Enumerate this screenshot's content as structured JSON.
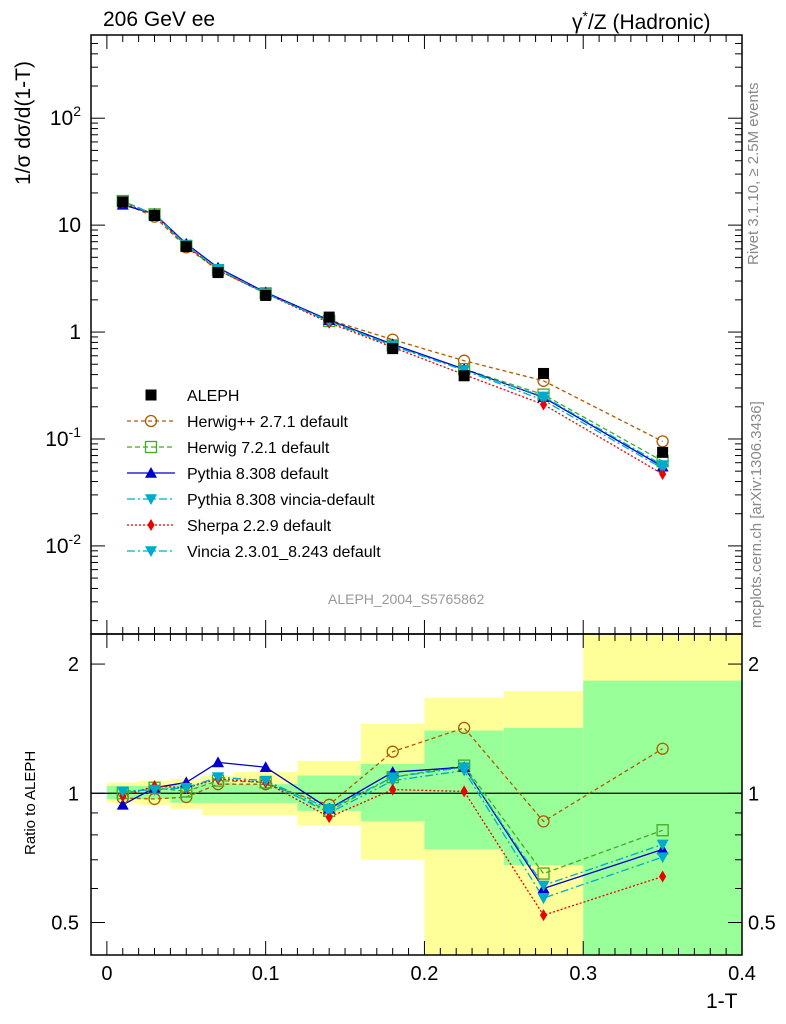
{
  "header": {
    "energy_label": "206 GeV ee",
    "process_label_prefix": "γ",
    "process_label_sup": "*",
    "process_label_suffix": "/Z (Hadronic)"
  },
  "side_labels": {
    "rivet": "Rivet 3.1.10, ≥ 2.5M events",
    "mcplots": "mcplots.cern.ch [arXiv:1306.3436]"
  },
  "analysis_label": "ALEPH_2004_S5765862",
  "main_ylabel": "1/σ  dσ/d(1-T)",
  "ratio_ylabel": "Ratio to ALEPH",
  "xlabel": "1-T",
  "chart_data": [
    {
      "type": "line",
      "title": "",
      "ylabel": "1/σ  dσ/d(1-T)",
      "yscale": "log",
      "xlim": [
        -0.01,
        0.4
      ],
      "ylim": [
        0.0015,
        600
      ],
      "yticks": [
        {
          "v": 0.01,
          "base": "10",
          "exp": "-2"
        },
        {
          "v": 0.1,
          "base": "10",
          "exp": "-1"
        },
        {
          "v": 1,
          "base": "1",
          "exp": ""
        },
        {
          "v": 10,
          "base": "10",
          "exp": ""
        },
        {
          "v": 100,
          "base": "10",
          "exp": "2"
        }
      ],
      "legend_position": "lower-left",
      "x": [
        0.01,
        0.03,
        0.05,
        0.07,
        0.1,
        0.14,
        0.18,
        0.225,
        0.275,
        0.35
      ],
      "data_series": {
        "name": "ALEPH",
        "values": [
          16.5,
          12.3,
          6.3,
          3.6,
          2.2,
          1.38,
          0.7,
          0.39,
          0.41,
          0.075
        ]
      },
      "series": [
        {
          "name": "Herwig++ 2.7.1 default",
          "color": "#b05a00",
          "dash": "4,3",
          "marker": "circle-open",
          "values": [
            16.0,
            12.0,
            6.2,
            3.8,
            2.3,
            1.3,
            0.85,
            0.54,
            0.35,
            0.095
          ]
        },
        {
          "name": "Herwig 7.2.1 default",
          "color": "#44aa22",
          "dash": "5,3",
          "marker": "square-open",
          "values": [
            16.8,
            12.6,
            6.4,
            3.8,
            2.3,
            1.27,
            0.75,
            0.45,
            0.26,
            0.062
          ]
        },
        {
          "name": "Pythia 8.308 default",
          "color": "#0000cc",
          "dash": "",
          "marker": "triangle-up",
          "values": [
            15.5,
            12.7,
            6.7,
            4.0,
            2.35,
            1.29,
            0.77,
            0.45,
            0.245,
            0.055
          ]
        },
        {
          "name": "Pythia 8.308 vincia-default",
          "color": "#00aacc",
          "dash": "8,3,2,3",
          "marker": "triangle-down",
          "values": [
            16.7,
            12.6,
            6.5,
            3.9,
            2.3,
            1.25,
            0.74,
            0.44,
            0.23,
            0.053
          ]
        },
        {
          "name": "Sherpa 2.2.9 default",
          "color": "#ee0000",
          "dash": "2,2",
          "marker": "diamond",
          "values": [
            16.2,
            12.5,
            6.4,
            3.8,
            2.3,
            1.22,
            0.72,
            0.4,
            0.21,
            0.047
          ]
        },
        {
          "name": "Vincia 2.3.01_8.243 default",
          "color": "#00aacc",
          "dash": "8,3,2,3",
          "marker": "triangle-down",
          "values": [
            16.6,
            12.5,
            6.5,
            3.9,
            2.3,
            1.27,
            0.75,
            0.44,
            0.25,
            0.057
          ]
        }
      ]
    },
    {
      "type": "line",
      "title": "",
      "ylabel": "Ratio to ALEPH",
      "xlabel": "1-T",
      "yscale": "log",
      "xlim": [
        -0.01,
        0.4
      ],
      "ylim": [
        0.42,
        2.35
      ],
      "xticks": [
        0,
        0.1,
        0.2,
        0.3,
        0.4
      ],
      "xtick_labels": [
        "0",
        "0.1",
        "0.2",
        "0.3",
        "0.4"
      ],
      "yticks": [
        0.5,
        1,
        2
      ],
      "ytick_labels": [
        "0.5",
        "1",
        "2"
      ],
      "x": [
        0.01,
        0.03,
        0.05,
        0.07,
        0.1,
        0.14,
        0.18,
        0.225,
        0.275,
        0.35
      ],
      "bands": [
        {
          "x0": 0.0,
          "x1": 0.02,
          "y_lo": 0.95,
          "y_hi": 1.06,
          "g_lo": 0.97,
          "g_hi": 1.04
        },
        {
          "x0": 0.02,
          "x1": 0.04,
          "y_lo": 0.94,
          "y_hi": 1.07,
          "g_lo": 0.97,
          "g_hi": 1.04
        },
        {
          "x0": 0.04,
          "x1": 0.06,
          "y_lo": 0.92,
          "y_hi": 1.08,
          "g_lo": 0.95,
          "g_hi": 1.05
        },
        {
          "x0": 0.06,
          "x1": 0.08,
          "y_lo": 0.89,
          "y_hi": 1.1,
          "g_lo": 0.95,
          "g_hi": 1.06
        },
        {
          "x0": 0.08,
          "x1": 0.12,
          "y_lo": 0.89,
          "y_hi": 1.12,
          "g_lo": 0.95,
          "g_hi": 1.05
        },
        {
          "x0": 0.12,
          "x1": 0.16,
          "y_lo": 0.84,
          "y_hi": 1.19,
          "g_lo": 0.91,
          "g_hi": 1.1
        },
        {
          "x0": 0.16,
          "x1": 0.2,
          "y_lo": 0.7,
          "y_hi": 1.45,
          "g_lo": 0.86,
          "g_hi": 1.17
        },
        {
          "x0": 0.2,
          "x1": 0.25,
          "y_lo": 0.36,
          "y_hi": 1.67,
          "g_lo": 0.74,
          "g_hi": 1.4
        },
        {
          "x0": 0.25,
          "x1": 0.3,
          "y_lo": 0.36,
          "y_hi": 1.73,
          "g_lo": 0.68,
          "g_hi": 1.42
        },
        {
          "x0": 0.3,
          "x1": 0.4,
          "y_lo": 0.36,
          "y_hi": 2.5,
          "g_lo": 0.36,
          "g_hi": 1.83
        }
      ],
      "series": [
        {
          "name": "Herwig++ 2.7.1 default",
          "color": "#b05a00",
          "dash": "4,3",
          "marker": "circle-open",
          "values": [
            0.975,
            0.97,
            0.98,
            1.05,
            1.05,
            0.94,
            1.25,
            1.42,
            0.86,
            1.27
          ]
        },
        {
          "name": "Herwig 7.2.1 default",
          "color": "#44aa22",
          "dash": "5,3",
          "marker": "square-open",
          "values": [
            1.0,
            1.03,
            1.01,
            1.07,
            1.06,
            0.91,
            1.09,
            1.16,
            0.65,
            0.82
          ]
        },
        {
          "name": "Pythia 8.308 default",
          "color": "#0000cc",
          "dash": "",
          "marker": "triangle-up",
          "values": [
            0.94,
            1.03,
            1.06,
            1.18,
            1.15,
            0.92,
            1.12,
            1.15,
            0.6,
            0.74
          ]
        },
        {
          "name": "Pythia 8.308 vincia-default",
          "color": "#00aacc",
          "dash": "8,3,2,3",
          "marker": "triangle-down",
          "values": [
            1.01,
            1.02,
            1.03,
            1.09,
            1.07,
            0.9,
            1.07,
            1.13,
            0.57,
            0.71
          ]
        },
        {
          "name": "Sherpa 2.2.9 default",
          "color": "#ee0000",
          "dash": "2,2",
          "marker": "diamond",
          "values": [
            0.985,
            1.04,
            1.03,
            1.08,
            1.06,
            0.88,
            1.02,
            1.01,
            0.52,
            0.64
          ]
        },
        {
          "name": "Vincia 2.3.01_8.243 default",
          "color": "#00aacc",
          "dash": "8,3,2,3",
          "marker": "triangle-down",
          "values": [
            1.01,
            1.02,
            1.03,
            1.09,
            1.07,
            0.92,
            1.09,
            1.15,
            0.61,
            0.76
          ]
        }
      ]
    }
  ]
}
